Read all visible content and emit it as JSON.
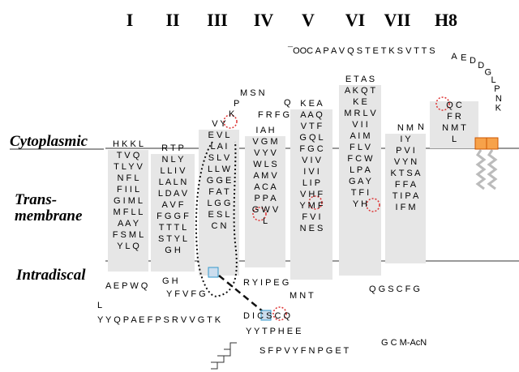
{
  "header": {
    "helix_labels": [
      "I",
      "II",
      "III",
      "IV",
      "V",
      "VI",
      "VII",
      "H8"
    ]
  },
  "regions": {
    "cytoplasmic": "Cytoplasmic",
    "trans": "Trans-",
    "membrane": "membrane",
    "intradiscal": "Intradiscal"
  },
  "helices": [
    {
      "rows": [
        "H K K L",
        "T V Q",
        "T L Y V",
        "N F L",
        "F I I L",
        "G I M L",
        "M F L L",
        "A A Y",
        "F S M L",
        "Y L Q"
      ]
    },
    {
      "rows": [
        "R T P",
        "N L Y",
        "L L I V",
        "L A L N",
        "L D A V",
        "A V F",
        "F G G F",
        "T T T L",
        "S T Y L",
        "G H"
      ]
    },
    {
      "rows": [
        "V Y",
        "E V L",
        "L A I",
        "S L V",
        "L L W",
        "G G E",
        "F A T",
        "L G G",
        "E S L",
        "C N"
      ]
    },
    {
      "rows": [
        "I A H",
        "V G M",
        "V Y V",
        "W L S",
        "A M V",
        "A C A",
        "P P A",
        "G W V",
        "L"
      ]
    },
    {
      "rows": [
        "K E A",
        "A A Q",
        "V T F",
        "G Q L",
        "F G C",
        "V I V",
        "I V I",
        "L I P",
        "V H F",
        "Y M F",
        "F V I",
        "N E S"
      ]
    },
    {
      "rows": [
        "E T A S",
        "A K Q T",
        "K E",
        "M R L V",
        "V I I",
        "A I M",
        "F L V",
        "F C W",
        "L P A",
        "G A Y",
        "T F I",
        "Y H"
      ]
    },
    {
      "rows": [
        "N M",
        "I Y",
        "P V I",
        "V Y N",
        "K T S A",
        "F F A",
        "T I P A",
        "I F M"
      ]
    },
    {
      "rows": [
        "Q C",
        "F R",
        "N M T",
        "L"
      ]
    }
  ],
  "loops": [
    "¯OOC A P A V Q S T E T K S V T T S",
    "M S N",
    "P",
    "K",
    "F R F G",
    "Q",
    "L",
    "A E P W Q",
    "Y Y Q P A E F P S R V V G T K",
    "G H",
    "Y F V F G",
    "R Y I P E G",
    "D I C S C Q",
    "Y Y T P H E E",
    "M N T",
    "S F P V Y F N P G E T",
    "G C M-AcN",
    "Q G S C F G",
    "N"
  ],
  "cterm_tail": [
    "A",
    "E",
    "D",
    "D",
    "G",
    "L",
    "P",
    "N",
    "K"
  ]
}
